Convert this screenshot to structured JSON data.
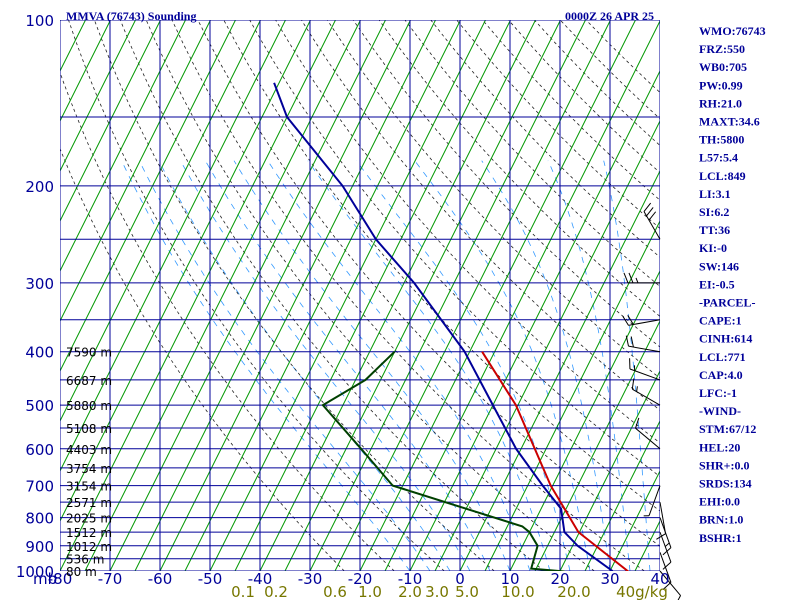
{
  "chart_data": {
    "type": "skew-t",
    "station_title": "MMVA (76743) Sounding",
    "time_title": "0000Z 26 APR 25",
    "pressure_unit_label": "mb",
    "pressure_ticks": [
      100,
      200,
      300,
      400,
      500,
      600,
      700,
      800,
      900,
      1000
    ],
    "pressure_range": [
      100,
      1000
    ],
    "temperature_ticks": [
      -80,
      -70,
      -60,
      -50,
      -40,
      -30,
      -20,
      -10,
      0,
      10,
      20,
      30,
      40
    ],
    "temperature_range_at_surface": [
      -80,
      40
    ],
    "mixing_ratio_labels": [
      "0.1",
      "0.2",
      "0.6",
      "1.0",
      "2.0",
      "3.0",
      "5.0",
      "10.0",
      "20.0",
      "40g/kg"
    ],
    "height_labels": [
      {
        "p": 400,
        "text": "7590 m"
      },
      {
        "p": 450,
        "text": "6687 m"
      },
      {
        "p": 500,
        "text": "5880 m"
      },
      {
        "p": 550,
        "text": "5108 m"
      },
      {
        "p": 600,
        "text": "4403 m"
      },
      {
        "p": 650,
        "text": "3754 m"
      },
      {
        "p": 700,
        "text": "3154 m"
      },
      {
        "p": 750,
        "text": "2571 m"
      },
      {
        "p": 800,
        "text": "2025 m"
      },
      {
        "p": 850,
        "text": "1512 m"
      },
      {
        "p": 900,
        "text": "1012 m"
      },
      {
        "p": 950,
        "text": "536 m"
      },
      {
        "p": 1000,
        "text": "80 m"
      }
    ],
    "series": [
      {
        "name": "Temperature",
        "color": "#cc0000",
        "points": [
          [
            1002,
            33.7
          ],
          [
            850,
            19.8
          ],
          [
            700,
            9.6
          ],
          [
            500,
            -5.4
          ],
          [
            400,
            -17.5
          ]
        ]
      },
      {
        "name": "Dewpoint",
        "color": "#004000",
        "points": [
          [
            1002,
            21.0
          ],
          [
            990,
            14.0
          ],
          [
            900,
            13.0
          ],
          [
            850,
            10.0
          ],
          [
            830,
            8.0
          ],
          [
            700,
            -22.0
          ],
          [
            600,
            -32.0
          ],
          [
            500,
            -44.0
          ],
          [
            450,
            -38.0
          ],
          [
            400,
            -35.0
          ]
        ]
      },
      {
        "name": "Parcel",
        "color": "#000099",
        "points": [
          [
            1000,
            30.5
          ],
          [
            900,
            21.0
          ],
          [
            850,
            17.0
          ],
          [
            771,
            14.0
          ],
          [
            700,
            8.0
          ],
          [
            600,
            -1.0
          ],
          [
            500,
            -10.0
          ],
          [
            400,
            -21.0
          ],
          [
            300,
            -38.0
          ],
          [
            250,
            -50.0
          ],
          [
            200,
            -62.0
          ],
          [
            150,
            -80.0
          ],
          [
            130,
            -86.0
          ]
        ]
      }
    ],
    "wind_barbs": [
      {
        "p": 1000,
        "dir": 140,
        "spd": 10
      },
      {
        "p": 925,
        "dir": 160,
        "spd": 10
      },
      {
        "p": 850,
        "dir": 160,
        "spd": 10
      },
      {
        "p": 800,
        "dir": 160,
        "spd": 15
      },
      {
        "p": 750,
        "dir": 170,
        "spd": 10
      },
      {
        "p": 700,
        "dir": 200,
        "spd": 5
      },
      {
        "p": 600,
        "dir": 310,
        "spd": 10
      },
      {
        "p": 500,
        "dir": 300,
        "spd": 15
      },
      {
        "p": 450,
        "dir": 290,
        "spd": 15
      },
      {
        "p": 400,
        "dir": 280,
        "spd": 20
      },
      {
        "p": 350,
        "dir": 260,
        "spd": 20
      },
      {
        "p": 300,
        "dir": 270,
        "spd": 25
      },
      {
        "p": 250,
        "dir": 330,
        "spd": 30
      }
    ],
    "indices": [
      "WMO:76743",
      "FRZ:550",
      "WB0:705",
      "PW:0.99",
      "RH:21.0",
      "MAXT:34.6",
      "TH:5800",
      "L57:5.4",
      "LCL:849",
      "LI:3.1",
      "SI:6.2",
      "TT:36",
      "KI:-0",
      "SW:146",
      "EI:-0.5",
      "-PARCEL-",
      "CAPE:1",
      "CINH:614",
      "LCL:771",
      "CAP:4.0",
      "LFC:-1",
      "-WIND-",
      "STM:67/12",
      "HEL:20",
      "SHR+:0.0",
      "SRDS:134",
      "EHI:0.0",
      "BRN:1.0",
      "BSHR:1"
    ],
    "colors": {
      "isobar": "#000099",
      "isotherm": "#009900",
      "dry_adiabat": "#222222",
      "moist_adiabat": "#3399ff",
      "mixing_ratio_label": "#777700",
      "text": "#000099",
      "barb": "#000000"
    }
  }
}
